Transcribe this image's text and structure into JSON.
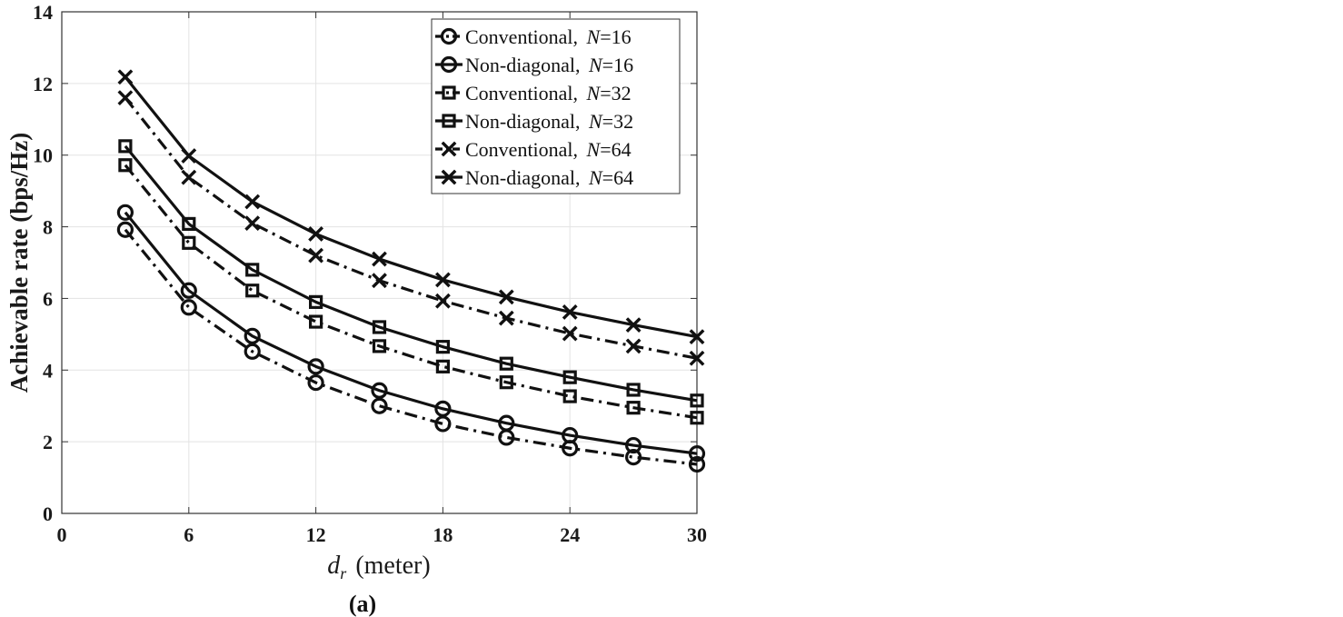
{
  "chart_data": {
    "type": "line",
    "xlabel_var": "d",
    "xlabel_sub": "r",
    "xlabel_unit": "(meter)",
    "ylabel": "Achievable rate (bps/Hz)",
    "caption": "(a)",
    "xlim": [
      0,
      30
    ],
    "ylim": [
      0,
      14
    ],
    "xticks": [
      0,
      6,
      12,
      18,
      24,
      30
    ],
    "yticks": [
      0,
      2,
      4,
      6,
      8,
      10,
      12,
      14
    ],
    "grid": true,
    "legend_position": "top-right",
    "x": [
      3,
      6,
      9,
      12,
      15,
      18,
      21,
      24,
      27,
      30
    ],
    "series": [
      {
        "name": "Conventional, N=16",
        "label_prefix": "Conventional,",
        "n_value": "16",
        "marker": "circle",
        "line": "dashdot",
        "values": [
          7.92,
          5.75,
          4.52,
          3.65,
          3.0,
          2.5,
          2.12,
          1.82,
          1.57,
          1.37
        ]
      },
      {
        "name": "Non-diagonal, N=16",
        "label_prefix": "Non-diagonal,",
        "n_value": "16",
        "marker": "circle",
        "line": "solid",
        "values": [
          8.4,
          6.22,
          4.95,
          4.1,
          3.43,
          2.92,
          2.52,
          2.18,
          1.9,
          1.67
        ]
      },
      {
        "name": "Conventional, N=32",
        "label_prefix": "Conventional,",
        "n_value": "32",
        "marker": "square",
        "line": "dashdot",
        "values": [
          9.72,
          7.55,
          6.22,
          5.35,
          4.67,
          4.1,
          3.66,
          3.27,
          2.95,
          2.67
        ]
      },
      {
        "name": "Non-diagonal, N=32",
        "label_prefix": "Non-diagonal,",
        "n_value": "32",
        "marker": "square",
        "line": "solid",
        "values": [
          10.25,
          8.08,
          6.8,
          5.9,
          5.2,
          4.65,
          4.18,
          3.8,
          3.45,
          3.15
        ]
      },
      {
        "name": "Conventional, N=64",
        "label_prefix": "Conventional,",
        "n_value": "64",
        "marker": "x",
        "line": "dashdot",
        "values": [
          11.6,
          9.38,
          8.1,
          7.2,
          6.5,
          5.93,
          5.45,
          5.02,
          4.67,
          4.33
        ]
      },
      {
        "name": "Non-diagonal, N=64",
        "label_prefix": "Non-diagonal,",
        "n_value": "64",
        "marker": "x",
        "line": "solid",
        "values": [
          12.18,
          9.98,
          8.7,
          7.8,
          7.1,
          6.52,
          6.04,
          5.62,
          5.26,
          4.93
        ]
      }
    ],
    "colors": {
      "line": "#111111",
      "grid": "#e3e3e3",
      "axis": "#333333"
    }
  }
}
